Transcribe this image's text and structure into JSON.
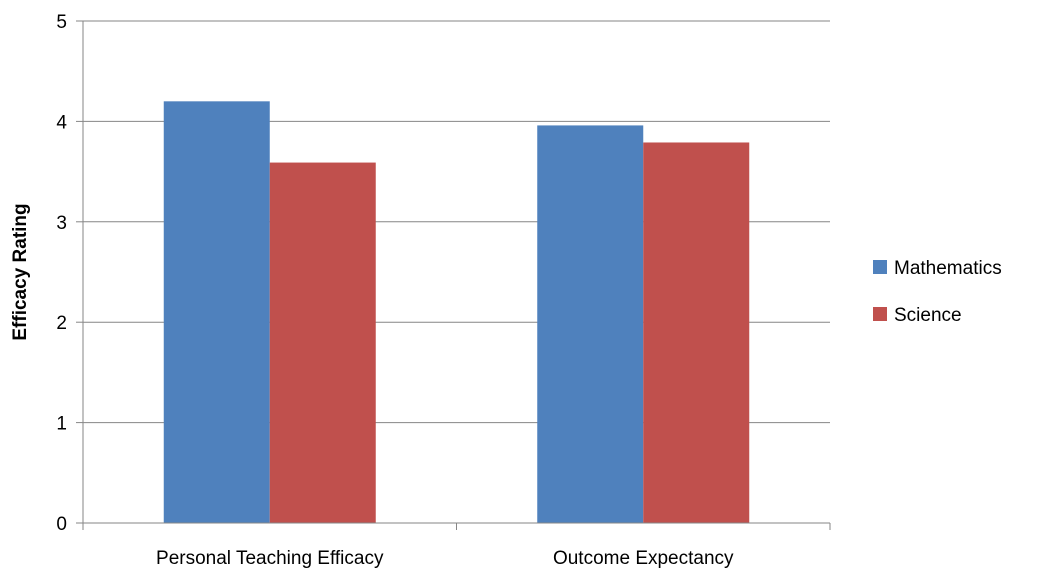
{
  "chart_data": {
    "type": "bar",
    "categories": [
      "Personal Teaching Efficacy",
      "Outcome Expectancy"
    ],
    "series": [
      {
        "name": "Mathematics",
        "values": [
          4.2,
          3.96
        ],
        "color": "#4F81BD"
      },
      {
        "name": "Science",
        "values": [
          3.59,
          3.79
        ],
        "color": "#C0504D"
      }
    ],
    "title": "",
    "xlabel": "",
    "ylabel": "Efficacy Rating",
    "ylim": [
      0,
      5
    ],
    "yticks": [
      "0",
      "1",
      "2",
      "3",
      "4",
      "5"
    ],
    "grid": true,
    "legend": "right"
  }
}
